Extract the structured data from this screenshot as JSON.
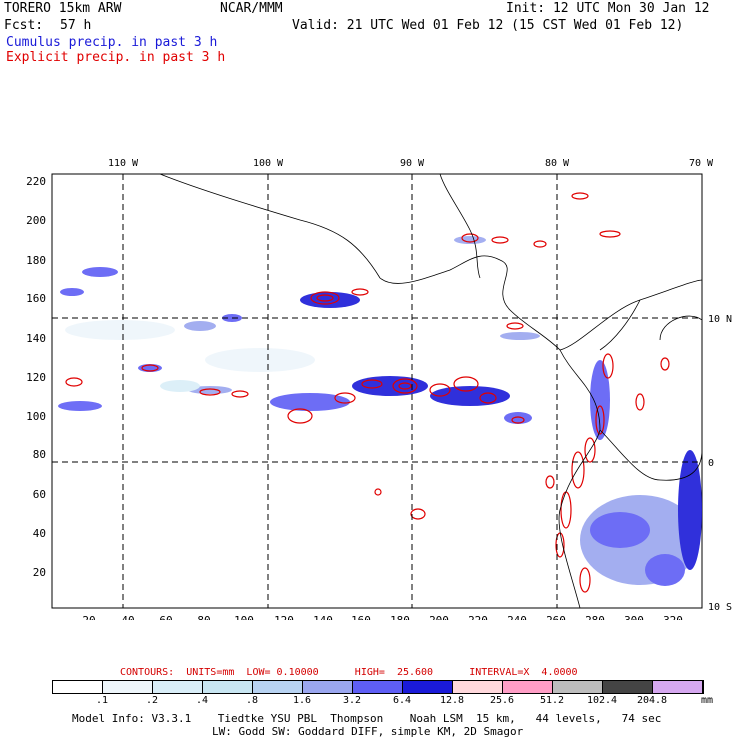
{
  "header": {
    "title_left": "TORERO 15km ARW",
    "center_label": "NCAR/MMM",
    "init_label": "Init: 12 UTC Mon 30 Jan 12",
    "fcst_label": "Fcst:",
    "fcst_value": "57 h",
    "valid_label": "Valid: 21 UTC Wed 01 Feb 12 (15 CST Wed 01 Feb 12)",
    "legend_cumulus": "Cumulus precip. in past 3 h",
    "legend_explicit": "Explicit precip. in past 3 h"
  },
  "colors": {
    "cumulus": "#1a1ad8",
    "explicit": "#e00000",
    "grid": "#000000",
    "coast": "#000000"
  },
  "map": {
    "top_longitudes": [
      "110 W",
      "100 W",
      "90 W",
      "80 W",
      "70 W"
    ],
    "right_latitudes": [
      "10 N",
      "0",
      "10 S"
    ],
    "y_ticks": [
      "220",
      "200",
      "180",
      "160",
      "140",
      "120",
      "100",
      "80",
      "60",
      "40",
      "20"
    ],
    "x_ticks": [
      "20",
      "40",
      "60",
      "80",
      "100",
      "120",
      "140",
      "160",
      "180",
      "200",
      "220",
      "240",
      "260",
      "280",
      "300",
      "320"
    ]
  },
  "contours": {
    "line": "CONTOURS:  UNITS=mm  LOW= 0.10000      HIGH=  25.600      INTERVAL=X  4.0000"
  },
  "colorbar": {
    "labels": [
      ".1",
      ".2",
      ".4",
      ".8",
      "1.6",
      "3.2",
      "6.4",
      "12.8",
      "25.6",
      "51.2",
      "102.4",
      "204.8"
    ],
    "units": "mm",
    "colors": [
      "#ffffff",
      "#eef6fb",
      "#d9eef8",
      "#c8e6f2",
      "#b8d3f2",
      "#9aa6ef",
      "#5e5ef5",
      "#1a1ad8",
      "#ffd8dc",
      "#ff9ec6",
      "#bdbdbd",
      "#444444",
      "#d6a8f0"
    ]
  },
  "footer": {
    "line1": "Model Info: V3.3.1    Tiedtke YSU PBL  Thompson    Noah LSM  15 km,   44 levels,   74 sec",
    "line2": "LW: Godd SW: Goddard DIFF, simple KM, 2D Smagor"
  }
}
